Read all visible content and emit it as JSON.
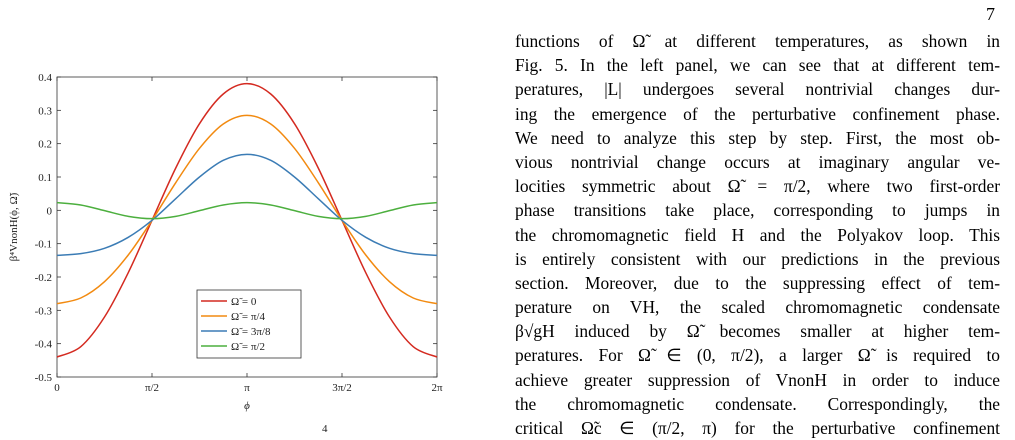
{
  "page_number": "7",
  "chart_data": {
    "type": "line",
    "ylabel": "β⁴VnonH(ϕ, Ω̃)",
    "xlabel": "ϕ",
    "x": [
      0,
      0.3927,
      0.7854,
      1.1781,
      1.5708,
      1.9635,
      2.3562,
      2.7489,
      3.1416,
      3.5343,
      3.927,
      4.3197,
      4.7124,
      5.1051,
      5.4978,
      5.8905,
      6.2832
    ],
    "series": [
      {
        "name": "Ω̃ = 0",
        "color": "#d42a20",
        "values": [
          -0.44,
          -0.409,
          -0.32,
          -0.187,
          -0.03,
          0.127,
          0.26,
          0.349,
          0.38,
          0.349,
          0.26,
          0.127,
          -0.03,
          -0.187,
          -0.32,
          -0.409,
          -0.44
        ]
      },
      {
        "name": "Ω̃ = π/4",
        "color": "#f28a10",
        "values": [
          -0.28,
          -0.263,
          -0.214,
          -0.134,
          -0.03,
          0.083,
          0.186,
          0.259,
          0.285,
          0.259,
          0.186,
          0.083,
          -0.03,
          -0.134,
          -0.214,
          -0.263,
          -0.28
        ]
      },
      {
        "name": "Ω̃ = 3π/8",
        "color": "#3b7cb5",
        "values": [
          -0.135,
          -0.13,
          -0.114,
          -0.081,
          -0.03,
          0.035,
          0.1,
          0.15,
          0.168,
          0.15,
          0.1,
          0.035,
          -0.03,
          -0.081,
          -0.114,
          -0.13,
          -0.135
        ]
      },
      {
        "name": "Ω̃ = π/2",
        "color": "#4caf3e",
        "values": [
          0.023,
          0.016,
          -0.001,
          -0.018,
          -0.025,
          -0.018,
          -0.001,
          0.016,
          0.023,
          0.016,
          -0.001,
          -0.018,
          -0.025,
          -0.018,
          -0.001,
          0.016,
          0.023
        ]
      }
    ],
    "xlim": [
      0,
      6.2832
    ],
    "xticks": [
      0,
      {
        "value": 1.5708,
        "label": "π/2"
      },
      {
        "value": 3.1416,
        "label": "π"
      },
      {
        "value": 4.7124,
        "label": "3π/2"
      },
      {
        "value": 6.2832,
        "label": "2π"
      }
    ],
    "ylim": [
      -0.5,
      0.4
    ],
    "yticks": [
      -0.5,
      -0.4,
      -0.3,
      -0.2,
      -0.1,
      0,
      0.1,
      0.2,
      0.3,
      0.4
    ],
    "legend_loc": "lower center"
  },
  "caption_fragment": "4",
  "body": {
    "lines": [
      "functions of Ω̃ at different temperatures, as shown in",
      "Fig. 5. In the left panel, we can see that at different tem-",
      "peratures, |L| undergoes several nontrivial changes dur-",
      "ing the emergence of the perturbative confinement phase.",
      "We need to analyze this step by step. First, the most ob-",
      "vious nontrivial change occurs at imaginary angular ve-",
      "locities symmetric about Ω̃ = π/2, where two first-order",
      "phase transitions take place, corresponding to jumps in",
      "the chromomagnetic field H and the Polyakov loop. This",
      "is entirely consistent with our predictions in the previous",
      "section. Moreover, due to the suppressing effect of tem-",
      "perature on VH, the scaled chromomagnetic condensate",
      "β√gH induced by Ω̃ becomes smaller at higher tem-",
      "peratures. For Ω̃ ∈ (0, π/2), a larger Ω̃ is required to",
      "achieve greater suppression of VnonH in order to induce",
      "the chromomagnetic condensate. Correspondingly, the",
      "critical Ω̃c ∈ (π/2, π) for the perturbative confinement"
    ]
  }
}
